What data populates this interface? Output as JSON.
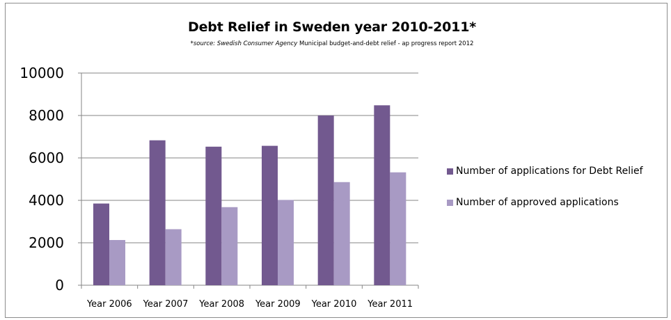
{
  "chart_data": {
    "type": "bar",
    "title": "Debt Relief in Sweden year 2010-2011*",
    "subtitle_source": "*source: Swedish Consumer Agency",
    "subtitle_rest": " Municipal  budget-and-debt  relief - ap progress  report  2012",
    "categories": [
      "Year 2006",
      "Year 2007",
      "Year 2008",
      "Year 2009",
      "Year 2010",
      "Year 2011"
    ],
    "series": [
      {
        "name": "Number of applications for Debt Relief",
        "color": "#72598f",
        "values": [
          3850,
          6830,
          6530,
          6570,
          8000,
          8480
        ]
      },
      {
        "name": "Number of approved applications",
        "color": "#a89ac4",
        "values": [
          2130,
          2640,
          3680,
          4020,
          4860,
          5320
        ]
      }
    ],
    "ylim": [
      0,
      10000
    ],
    "yticks": [
      "0",
      "2000",
      "4000",
      "6000",
      "8000",
      "10000"
    ],
    "grid": true,
    "legend_position": "right"
  }
}
